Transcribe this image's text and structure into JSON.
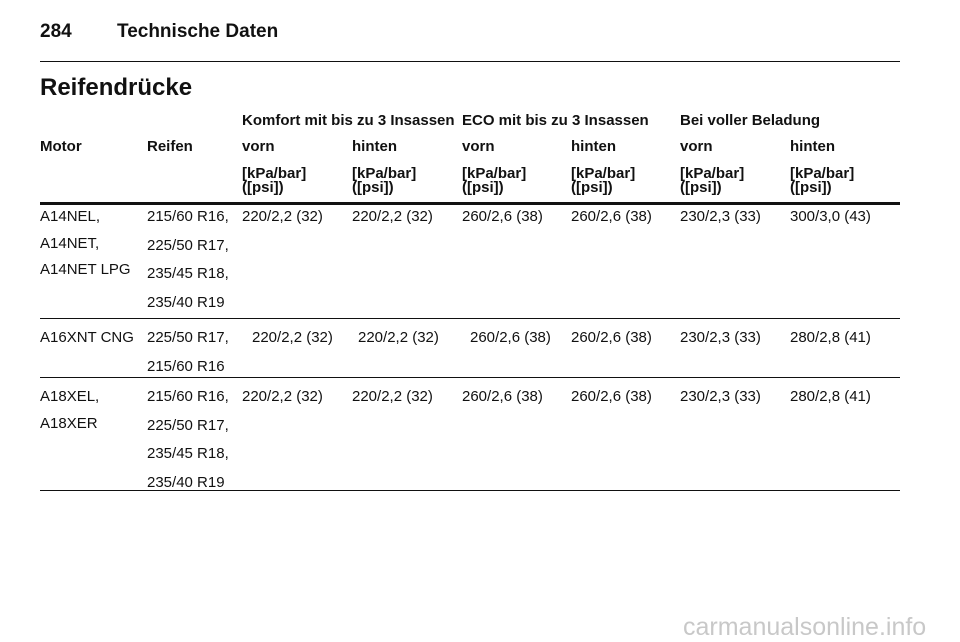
{
  "header": {
    "page_number": "284",
    "title": "Technische Daten"
  },
  "section_title": "Reifendrücke",
  "table": {
    "group_headers": [
      "Komfort mit bis zu 3 Insassen",
      "ECO mit bis zu 3 Insassen",
      "Bei voller Beladung"
    ],
    "columns": [
      "Motor",
      "Reifen",
      "vorn",
      "hinten",
      "vorn",
      "hinten",
      "vorn",
      "hinten"
    ],
    "units": [
      [
        "[kPa/bar]",
        "([psi])"
      ],
      [
        "[kPa/bar]",
        "([psi])"
      ],
      [
        "[kPa/bar]",
        "([psi])"
      ],
      [
        "[kPa/bar]",
        "([psi])"
      ],
      [
        "[kPa/bar]",
        "([psi])"
      ],
      [
        "[kPa/bar]",
        "([psi])"
      ]
    ],
    "rows": [
      {
        "motor": [
          "A14NEL,",
          "A14NET,",
          "A14NET LPG"
        ],
        "tires": [
          "215/60 R16,",
          "225/50 R17,",
          "235/45 R18,",
          "235/40 R19"
        ],
        "values": [
          "220/2,2 (32)",
          "220/2,2 (32)",
          "260/2,6 (38)",
          "260/2,6 (38)",
          "230/2,3 (33)",
          "300/3,0 (43)"
        ]
      },
      {
        "motor": [
          "A16XNT CNG"
        ],
        "tires": [
          "225/50 R17,",
          "215/60 R16"
        ],
        "values": [
          "220/2,2 (32)",
          "220/2,2 (32)",
          "260/2,6 (38)",
          "260/2,6 (38)",
          "230/2,3 (33)",
          "280/2,8 (41)"
        ]
      },
      {
        "motor": [
          "A18XEL,",
          "A18XER"
        ],
        "tires": [
          "215/60 R16,",
          "225/50 R17,",
          "235/45 R18,",
          "235/40 R19"
        ],
        "values": [
          "220/2,2 (32)",
          "220/2,2 (32)",
          "260/2,6 (38)",
          "260/2,6 (38)",
          "230/2,3 (33)",
          "280/2,8 (41)"
        ]
      }
    ]
  },
  "footer": {
    "watermark": "carmanualsonline.info"
  }
}
